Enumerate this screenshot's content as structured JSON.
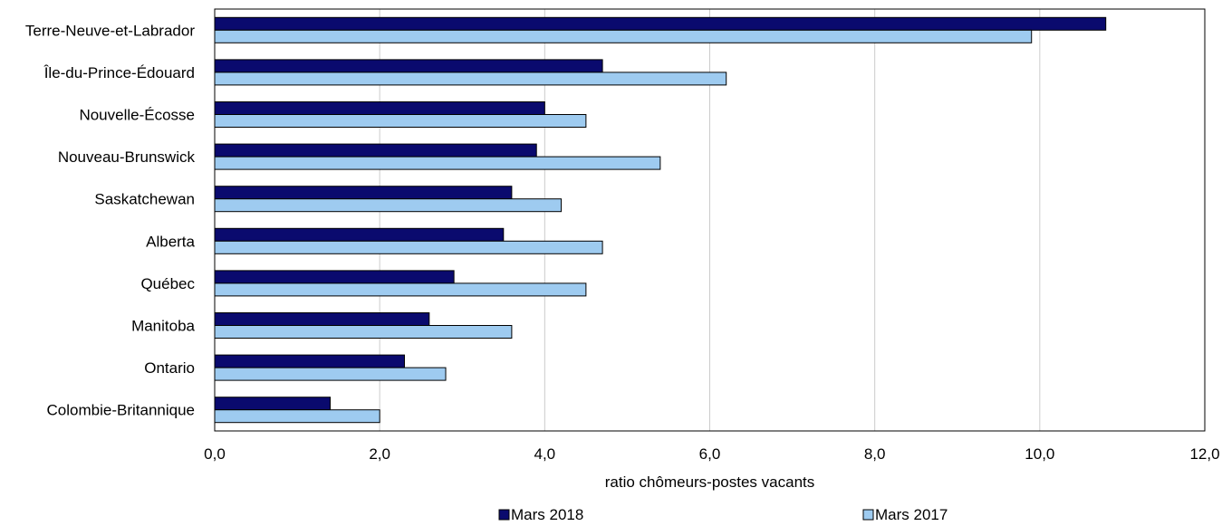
{
  "chart_data": {
    "type": "bar",
    "orientation": "horizontal",
    "title": "",
    "xlabel": "ratio chômeurs-postes vacants",
    "ylabel": "",
    "categories": [
      "Terre-Neuve-et-Labrador",
      "Île-du-Prince-Édouard",
      "Nouvelle-Écosse",
      "Nouveau-Brunswick",
      "Saskatchewan",
      "Alberta",
      "Québec",
      "Manitoba",
      "Ontario",
      "Colombie-Britannique"
    ],
    "series": [
      {
        "name": "Mars 2018",
        "color": "#0a0a6e",
        "values": [
          10.8,
          4.7,
          4.0,
          3.9,
          3.6,
          3.5,
          2.9,
          2.6,
          2.3,
          1.4
        ]
      },
      {
        "name": "Mars 2017",
        "color": "#9ecbf0",
        "values": [
          9.9,
          6.2,
          4.5,
          5.4,
          4.2,
          4.7,
          4.5,
          3.6,
          2.8,
          2.0
        ]
      }
    ],
    "xlim": [
      0,
      12
    ],
    "xticks": [
      "0,0",
      "2,0",
      "4,0",
      "6,0",
      "8,0",
      "10,0",
      "12,0"
    ],
    "grid": "vertical",
    "legend": "bottom"
  }
}
